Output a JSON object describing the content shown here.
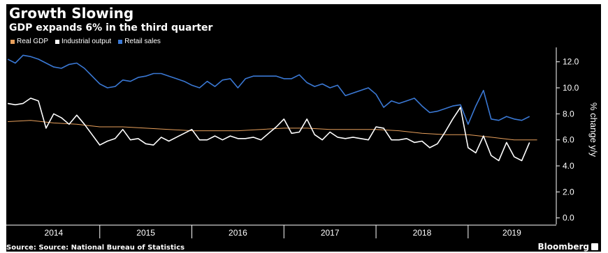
{
  "header": {
    "title": "Growth Slowing",
    "subtitle": "GDP expands 6% in the third quarter"
  },
  "footer": {
    "source": "Source: Source: National Bureau of Statistics",
    "brand": "Bloomberg"
  },
  "colors": {
    "background": "#000000",
    "real_gdp": "#e8a05c",
    "industrial_output": "#ffffff",
    "retail_sales": "#3a78d4",
    "axis": "#ffffff"
  },
  "chart_data": {
    "type": "line",
    "title": "Growth Slowing",
    "subtitle": "GDP expands 6% in the third quarter",
    "ylabel": "% change y/y",
    "y_axis_side": "right",
    "ylim": [
      -0.5,
      13.0
    ],
    "yticks": [
      0,
      2,
      4,
      6,
      8,
      10,
      12
    ],
    "ytick_labels": [
      "0.0",
      "2.0",
      "4.0",
      "6.0",
      "8.0",
      "10.0",
      "12.0"
    ],
    "xlim": [
      2014.0,
      2019.95
    ],
    "year_labels": [
      "2014",
      "2015",
      "2016",
      "2017",
      "2018",
      "2019"
    ],
    "grid": false,
    "legend": "top-left",
    "series": [
      {
        "name": "Real GDP",
        "color": "#e8a05c",
        "x": [
          2014.0,
          2014.25,
          2014.5,
          2014.75,
          2015.0,
          2015.25,
          2015.5,
          2015.75,
          2016.0,
          2016.25,
          2016.5,
          2016.75,
          2017.0,
          2017.25,
          2017.5,
          2017.75,
          2018.0,
          2018.25,
          2018.5,
          2018.75,
          2019.0,
          2019.25,
          2019.5,
          2019.75
        ],
        "y": [
          7.4,
          7.5,
          7.3,
          7.2,
          7.0,
          7.0,
          6.9,
          6.8,
          6.7,
          6.7,
          6.7,
          6.8,
          6.9,
          6.9,
          6.8,
          6.8,
          6.8,
          6.7,
          6.5,
          6.4,
          6.4,
          6.2,
          6.0,
          6.0
        ]
      },
      {
        "name": "Industrial output",
        "color": "#ffffff",
        "x": [
          2014.0,
          2014.083,
          2014.167,
          2014.25,
          2014.333,
          2014.417,
          2014.5,
          2014.583,
          2014.667,
          2014.75,
          2014.833,
          2014.917,
          2015.0,
          2015.083,
          2015.167,
          2015.25,
          2015.333,
          2015.417,
          2015.5,
          2015.583,
          2015.667,
          2015.75,
          2015.833,
          2015.917,
          2016.0,
          2016.083,
          2016.167,
          2016.25,
          2016.333,
          2016.417,
          2016.5,
          2016.583,
          2016.667,
          2016.75,
          2016.833,
          2016.917,
          2017.0,
          2017.083,
          2017.167,
          2017.25,
          2017.333,
          2017.417,
          2017.5,
          2017.583,
          2017.667,
          2017.75,
          2017.833,
          2017.917,
          2018.0,
          2018.083,
          2018.167,
          2018.25,
          2018.333,
          2018.417,
          2018.5,
          2018.583,
          2018.667,
          2018.75,
          2018.833,
          2018.917,
          2019.0,
          2019.083,
          2019.167,
          2019.25,
          2019.333,
          2019.417,
          2019.5,
          2019.583,
          2019.667
        ],
        "y": [
          8.8,
          8.7,
          8.8,
          9.2,
          9.0,
          6.9,
          8.0,
          7.7,
          7.2,
          7.9,
          7.2,
          6.4,
          5.6,
          5.9,
          6.1,
          6.8,
          6.0,
          6.1,
          5.7,
          5.6,
          6.2,
          5.9,
          6.2,
          6.5,
          6.8,
          6.0,
          6.0,
          6.3,
          6.0,
          6.3,
          6.1,
          6.1,
          6.2,
          6.0,
          6.5,
          7.0,
          7.6,
          6.5,
          6.6,
          7.6,
          6.4,
          6.0,
          6.6,
          6.2,
          6.1,
          6.2,
          6.1,
          6.0,
          7.0,
          6.9,
          6.0,
          6.0,
          6.1,
          5.8,
          5.9,
          5.4,
          5.7,
          6.6,
          7.6,
          8.5,
          5.4,
          5.0,
          6.3,
          4.8,
          4.4,
          5.8,
          4.7,
          4.4,
          5.8
        ]
      },
      {
        "name": "Retail sales",
        "color": "#3a78d4",
        "x": [
          2014.0,
          2014.083,
          2014.167,
          2014.25,
          2014.333,
          2014.417,
          2014.5,
          2014.583,
          2014.667,
          2014.75,
          2014.833,
          2014.917,
          2015.0,
          2015.083,
          2015.167,
          2015.25,
          2015.333,
          2015.417,
          2015.5,
          2015.583,
          2015.667,
          2015.75,
          2015.833,
          2015.917,
          2016.0,
          2016.083,
          2016.167,
          2016.25,
          2016.333,
          2016.417,
          2016.5,
          2016.583,
          2016.667,
          2016.75,
          2016.833,
          2016.917,
          2017.0,
          2017.083,
          2017.167,
          2017.25,
          2017.333,
          2017.417,
          2017.5,
          2017.583,
          2017.667,
          2017.75,
          2017.833,
          2017.917,
          2018.0,
          2018.083,
          2018.167,
          2018.25,
          2018.333,
          2018.417,
          2018.5,
          2018.583,
          2018.667,
          2018.75,
          2018.833,
          2018.917,
          2019.0,
          2019.083,
          2019.167,
          2019.25,
          2019.333,
          2019.417,
          2019.5,
          2019.583,
          2019.667
        ],
        "y": [
          12.2,
          11.9,
          12.5,
          12.4,
          12.2,
          11.9,
          11.6,
          11.5,
          11.8,
          11.9,
          11.5,
          10.9,
          10.3,
          10.0,
          10.1,
          10.6,
          10.5,
          10.8,
          10.9,
          11.1,
          11.1,
          10.9,
          10.7,
          10.5,
          10.2,
          10.0,
          10.5,
          10.1,
          10.6,
          10.7,
          10.0,
          10.7,
          10.9,
          10.9,
          10.9,
          10.9,
          10.7,
          10.7,
          11.0,
          10.4,
          10.1,
          10.3,
          10.0,
          10.2,
          9.4,
          9.6,
          9.8,
          10.0,
          9.5,
          8.5,
          9.0,
          8.8,
          9.0,
          9.2,
          8.6,
          8.1,
          8.2,
          8.4,
          8.6,
          8.7,
          7.2,
          8.6,
          9.8,
          7.6,
          7.5,
          7.8,
          7.6,
          7.5,
          7.8
        ]
      }
    ]
  }
}
